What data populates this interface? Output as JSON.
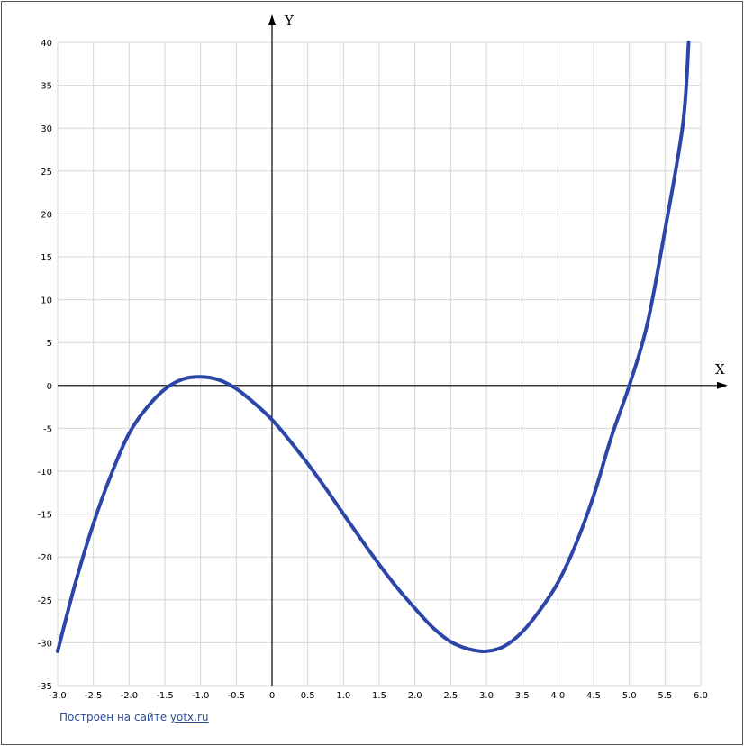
{
  "chart_data": {
    "type": "line",
    "title": "",
    "xlabel": "X",
    "ylabel": "Y",
    "xlim": [
      -3.0,
      6.0
    ],
    "ylim": [
      -35,
      40
    ],
    "grid": true,
    "x_ticks": [
      -3.0,
      -2.5,
      -2.0,
      -1.5,
      -1.0,
      -0.5,
      0,
      0.5,
      1.0,
      1.5,
      2.0,
      2.5,
      3.0,
      3.5,
      4.0,
      4.5,
      5.0,
      5.5,
      6.0
    ],
    "x_tick_labels": [
      "-3.0",
      "-2.5",
      "-2.0",
      "-1.5",
      "-1.0",
      "-0.5",
      "0",
      "0.5",
      "1.0",
      "1.5",
      "2.0",
      "2.5",
      "3.0",
      "3.5",
      "4.0",
      "4.5",
      "5.0",
      "5.5",
      "6.0"
    ],
    "y_ticks": [
      40,
      35,
      30,
      25,
      20,
      15,
      10,
      5,
      0,
      -5,
      -10,
      -15,
      -20,
      -25,
      -30,
      -35
    ],
    "y_tick_labels": [
      "40",
      "35",
      "30",
      "25",
      "20",
      "15",
      "10",
      "5",
      "0",
      "-5",
      "-10",
      "-15",
      "-20",
      "-25",
      "-30",
      "-35"
    ],
    "series": [
      {
        "color": "#2b46a8",
        "x": [
          -3.0,
          -2.75,
          -2.5,
          -2.25,
          -2.0,
          -1.75,
          -1.5,
          -1.25,
          -1.0,
          -0.75,
          -0.5,
          -0.25,
          0.0,
          0.25,
          0.5,
          0.75,
          1.0,
          1.25,
          1.5,
          1.75,
          2.0,
          2.25,
          2.5,
          2.75,
          3.0,
          3.25,
          3.5,
          3.75,
          4.0,
          4.25,
          4.5,
          4.75,
          5.0,
          5.25,
          5.5,
          5.75,
          5.83
        ],
        "y": [
          -31.0,
          -22.98,
          -16.13,
          -10.36,
          -5.6,
          -2.58,
          -0.43,
          0.73,
          1.0,
          0.67,
          -0.38,
          -2.05,
          -4.0,
          -6.45,
          -9.13,
          -11.98,
          -15.0,
          -17.98,
          -20.88,
          -23.58,
          -26.0,
          -28.23,
          -29.88,
          -30.73,
          -31.0,
          -30.41,
          -28.75,
          -26.19,
          -23.0,
          -18.53,
          -12.88,
          -5.98,
          0.0,
          7.11,
          18.13,
          30.48,
          40.0
        ]
      }
    ]
  },
  "credit": {
    "prefix": "Построен на сайте ",
    "link": "yotx.ru"
  }
}
